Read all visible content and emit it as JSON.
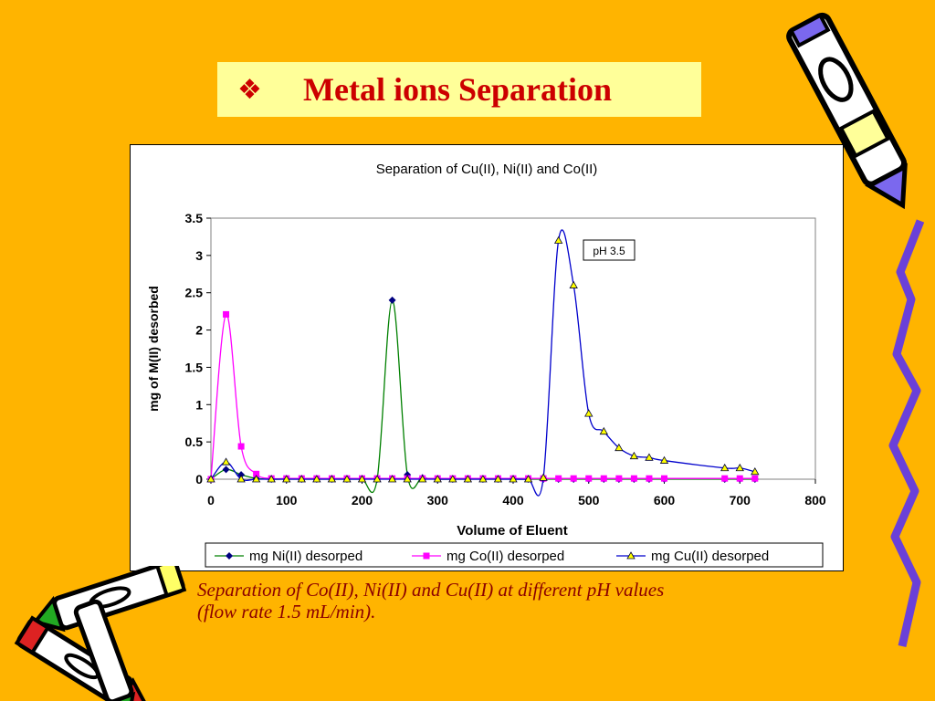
{
  "slide": {
    "bullet": "❖",
    "title": "Metal ions Separation",
    "caption_line1": "Separation of Co(II), Ni(II) and Cu(II) at different pH values",
    "caption_line2": "(flow rate 1.5 mL/min)."
  },
  "chart_data": {
    "type": "line",
    "title": "Separation of Cu(II), Ni(II) and Co(II)",
    "xlabel": "Volume of Eluent",
    "ylabel": "mg of M(II) desorbed",
    "xlim": [
      0,
      800
    ],
    "ylim": [
      0,
      3.5
    ],
    "xticks": [
      0,
      100,
      200,
      300,
      400,
      500,
      600,
      700,
      800
    ],
    "yticks": [
      0,
      0.5,
      1,
      1.5,
      2,
      2.5,
      3,
      3.5
    ],
    "ytick_labels": [
      "0",
      "0.5",
      "1",
      "1.5",
      "2",
      "2.5",
      "3",
      "3.5"
    ],
    "grid": false,
    "legend_position": "bottom",
    "annotation": "pH 3.5",
    "series": [
      {
        "name": "mg Ni(II) desorped",
        "color": "#008000",
        "marker": "diamond",
        "marker_color": "#000080",
        "points": [
          [
            0,
            0
          ],
          [
            20,
            0.13
          ],
          [
            40,
            0.06
          ],
          [
            60,
            0.01
          ],
          [
            80,
            0
          ],
          [
            100,
            0
          ],
          [
            120,
            0
          ],
          [
            140,
            0
          ],
          [
            160,
            0
          ],
          [
            180,
            0
          ],
          [
            200,
            0
          ],
          [
            220,
            0
          ],
          [
            240,
            2.4
          ],
          [
            260,
            0.06
          ],
          [
            280,
            0.02
          ],
          [
            300,
            0
          ],
          [
            320,
            0
          ],
          [
            340,
            0
          ],
          [
            360,
            0
          ],
          [
            380,
            0
          ],
          [
            400,
            0
          ],
          [
            420,
            0
          ],
          [
            440,
            0
          ],
          [
            460,
            0
          ],
          [
            480,
            0
          ],
          [
            500,
            0
          ],
          [
            520,
            0
          ],
          [
            540,
            0
          ],
          [
            560,
            0
          ],
          [
            580,
            0
          ],
          [
            600,
            0
          ],
          [
            680,
            0
          ],
          [
            700,
            0
          ],
          [
            720,
            0
          ]
        ]
      },
      {
        "name": "mg Co(II) desorped",
        "color": "#FF00FF",
        "marker": "square",
        "marker_color": "#FF00FF",
        "points": [
          [
            0,
            0
          ],
          [
            20,
            2.21
          ],
          [
            40,
            0.44
          ],
          [
            60,
            0.07
          ],
          [
            80,
            0.01
          ],
          [
            100,
            0.01
          ],
          [
            120,
            0.01
          ],
          [
            140,
            0.01
          ],
          [
            160,
            0.01
          ],
          [
            180,
            0.01
          ],
          [
            200,
            0.01
          ],
          [
            220,
            0.01
          ],
          [
            240,
            0.01
          ],
          [
            260,
            0.01
          ],
          [
            280,
            0.01
          ],
          [
            300,
            0.01
          ],
          [
            320,
            0.01
          ],
          [
            340,
            0.01
          ],
          [
            360,
            0.01
          ],
          [
            380,
            0.01
          ],
          [
            400,
            0.01
          ],
          [
            420,
            0.01
          ],
          [
            440,
            0.01
          ],
          [
            460,
            0.01
          ],
          [
            480,
            0.01
          ],
          [
            500,
            0.01
          ],
          [
            520,
            0.01
          ],
          [
            540,
            0.01
          ],
          [
            560,
            0.01
          ],
          [
            580,
            0.01
          ],
          [
            600,
            0.01
          ],
          [
            680,
            0.01
          ],
          [
            700,
            0.01
          ],
          [
            720,
            0.01
          ]
        ]
      },
      {
        "name": "mg Cu(II) desorped",
        "color": "#0000CC",
        "marker": "triangle",
        "marker_color": "#FFFF00",
        "points": [
          [
            0,
            0
          ],
          [
            20,
            0.23
          ],
          [
            40,
            0
          ],
          [
            60,
            0
          ],
          [
            80,
            0
          ],
          [
            100,
            0
          ],
          [
            120,
            0
          ],
          [
            140,
            0
          ],
          [
            160,
            0
          ],
          [
            180,
            0
          ],
          [
            200,
            0
          ],
          [
            220,
            0
          ],
          [
            240,
            0
          ],
          [
            260,
            0
          ],
          [
            280,
            0
          ],
          [
            300,
            0
          ],
          [
            320,
            0
          ],
          [
            340,
            0
          ],
          [
            360,
            0
          ],
          [
            380,
            0
          ],
          [
            400,
            0
          ],
          [
            420,
            0
          ],
          [
            440,
            0.02
          ],
          [
            460,
            3.2
          ],
          [
            480,
            2.6
          ],
          [
            500,
            0.88
          ],
          [
            520,
            0.64
          ],
          [
            540,
            0.42
          ],
          [
            560,
            0.31
          ],
          [
            580,
            0.29
          ],
          [
            600,
            0.25
          ],
          [
            680,
            0.15
          ],
          [
            700,
            0.15
          ],
          [
            720,
            0.1
          ]
        ]
      }
    ]
  }
}
